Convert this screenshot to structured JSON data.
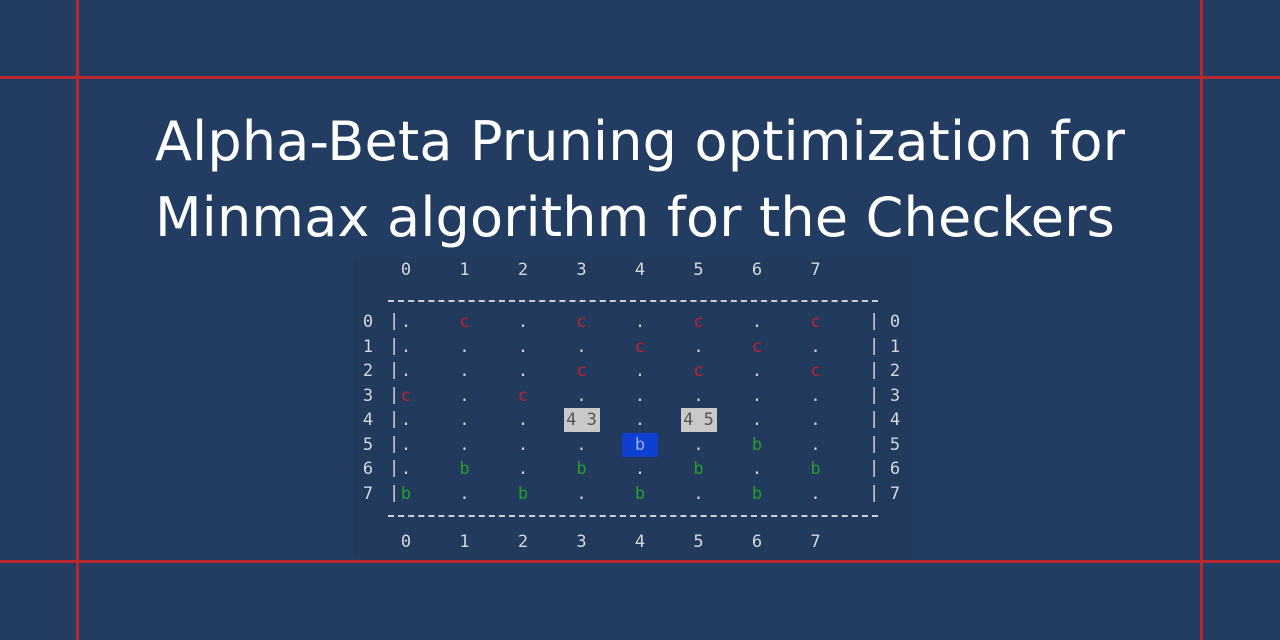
{
  "title": {
    "line1": "Alpha-Beta Pruning optimization for",
    "line2": "Minmax algorithm for the Checkers"
  },
  "board": {
    "columns": [
      "0",
      "1",
      "2",
      "3",
      "4",
      "5",
      "6",
      "7"
    ],
    "rows": [
      "0",
      "1",
      "2",
      "3",
      "4",
      "5",
      "6",
      "7"
    ],
    "rail": "|",
    "cells": [
      [
        ".",
        "c",
        ".",
        "c",
        ".",
        "c",
        ".",
        "c"
      ],
      [
        ".",
        ".",
        ".",
        ".",
        "c",
        ".",
        "c",
        "."
      ],
      [
        ".",
        ".",
        ".",
        "c",
        ".",
        "c",
        ".",
        "c"
      ],
      [
        "c",
        ".",
        "c",
        ".",
        ".",
        ".",
        ".",
        "."
      ],
      [
        ".",
        ".",
        ".",
        "4 3",
        ".",
        "4 5",
        ".",
        "."
      ],
      [
        ".",
        ".",
        ".",
        ".",
        "b",
        ".",
        "b",
        "."
      ],
      [
        ".",
        "b",
        ".",
        "b",
        ".",
        "b",
        ".",
        "b"
      ],
      [
        "b",
        ".",
        "b",
        ".",
        "b",
        ".",
        "b",
        "."
      ]
    ],
    "highlighted": [
      [
        4,
        3
      ],
      [
        4,
        5
      ]
    ],
    "selected": [
      5,
      4
    ]
  },
  "colors": {
    "background": "#223c62",
    "guide_lines": "#b8262f",
    "piece_c": "#c2202b",
    "piece_b": "#23a02a",
    "selected": "#0d3fd0",
    "highlight": "#c9c9c9"
  }
}
